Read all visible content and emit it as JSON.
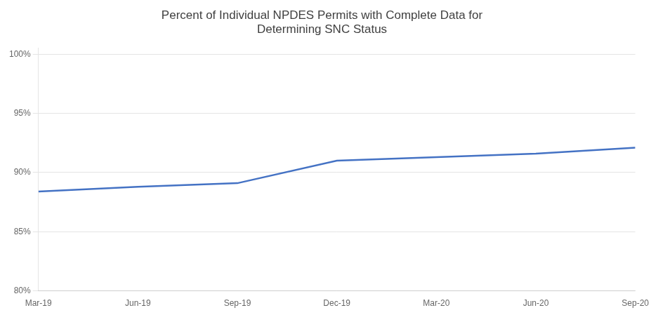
{
  "chart_data": {
    "type": "line",
    "title": "Percent of Individual NPDES Permits with Complete Data for\nDetermining SNC Status",
    "categories": [
      "Mar-19",
      "Jun-19",
      "Sep-19",
      "Dec-19",
      "Mar-20",
      "Jun-20",
      "Sep-20"
    ],
    "values": [
      0.884,
      0.888,
      0.891,
      0.91,
      0.913,
      0.916,
      0.921
    ],
    "color": "#4472C4",
    "ylim": [
      0.8,
      1.005
    ],
    "yticks": [
      {
        "value": 0.8,
        "label": "80%"
      },
      {
        "value": 0.85,
        "label": "85%"
      },
      {
        "value": 0.9,
        "label": "90%"
      },
      {
        "value": 0.95,
        "label": "95%"
      },
      {
        "value": 1.0,
        "label": "100%"
      }
    ],
    "grid": true
  }
}
